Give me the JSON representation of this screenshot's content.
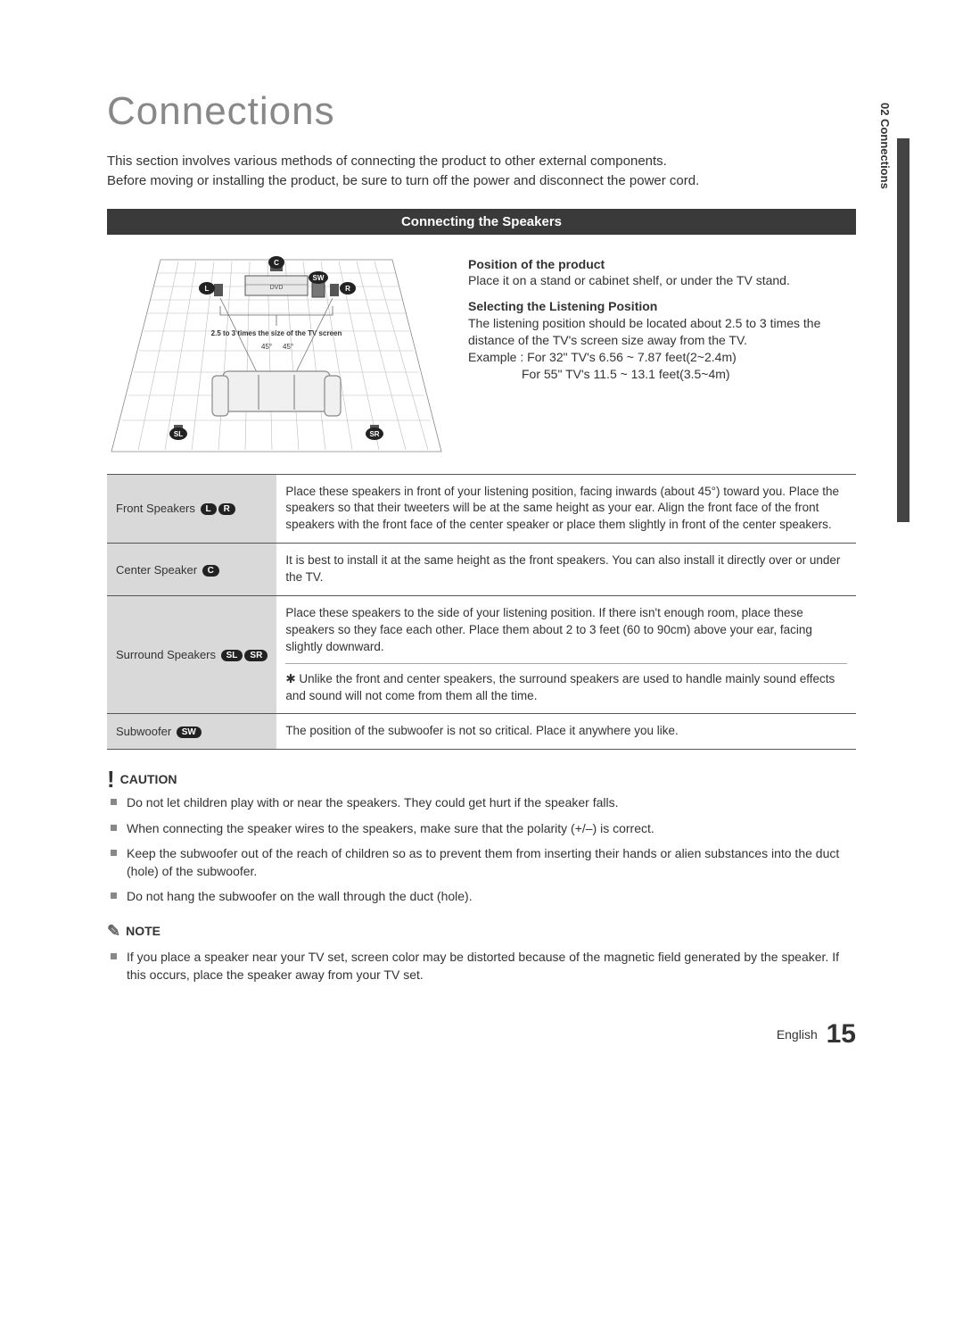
{
  "side_tab": "02  Connections",
  "title": "Connections",
  "intro_line1": "This section involves various methods of connecting the product to other external components.",
  "intro_line2": "Before moving or installing the product, be sure to turn off the power and disconnect the power cord.",
  "section_bar": "Connecting the Speakers",
  "diagram": {
    "label_dvd": "DVD",
    "label_distance": "2.5 to 3 times the size of the TV screen",
    "label_45l": "45°",
    "label_45r": "45°",
    "badges": {
      "C": "C",
      "L": "L",
      "R": "R",
      "SW": "SW",
      "SL": "SL",
      "SR": "SR"
    },
    "colors": {
      "floor_stroke": "#bcbcbc",
      "tv_fill": "#e8e8e8",
      "speaker_fill": "#555555",
      "badge_bg": "#222222",
      "line": "#666666",
      "outline": "#888888"
    }
  },
  "right_col": {
    "h_position": "Position of the product",
    "p_position": "Place it on a stand or cabinet shelf, or under the TV stand.",
    "h_listen": "Selecting the Listening Position",
    "p_listen": "The listening position should be located about 2.5 to 3 times the distance of the TV's screen size away from the TV.",
    "ex_label": "Example :",
    "ex_line1": "For 32\" TV's 6.56 ~ 7.87 feet(2~2.4m)",
    "ex_line2": "For 55\" TV's 11.5 ~ 13.1 feet(3.5~4m)"
  },
  "table": {
    "rows": [
      {
        "label": "Front Speakers",
        "badges": [
          "L",
          "R"
        ],
        "desc": "Place these speakers in front of your listening position, facing inwards (about 45°) toward you. Place the speakers so that their tweeters will be at the same height as your ear. Align the front face of the front speakers with the front face of the center speaker or place them slightly in front of the center speakers."
      },
      {
        "label": "Center Speaker",
        "badges": [
          "C"
        ],
        "desc": "It is best to install it at the same height as the front speakers. You can also install it directly over or under the TV."
      },
      {
        "label": "Surround Speakers",
        "badges": [
          "SL",
          "SR"
        ],
        "desc": "Place these speakers to the side of your listening position. If there isn't enough room, place these speakers so they face each other. Place them about 2 to 3 feet (60 to 90cm) above your ear, facing slightly downward.",
        "desc2": "Unlike the front and center speakers, the surround speakers are used to handle mainly sound effects and sound will not come from them all the time."
      },
      {
        "label": "Subwoofer",
        "badges": [
          "SW"
        ],
        "desc": "The position of the subwoofer is not so critical. Place it anywhere you like."
      }
    ]
  },
  "caution_label": "CAUTION",
  "caution_items": [
    "Do not let children play with or near the speakers. They could get hurt if the speaker falls.",
    "When connecting the speaker wires to the speakers, make sure that the polarity (+/–) is correct.",
    "Keep the subwoofer out of the reach of children so as to prevent them from inserting their hands or alien substances into the duct (hole) of the subwoofer.",
    "Do not hang the subwoofer on the wall through the duct (hole)."
  ],
  "note_label": "NOTE",
  "note_items": [
    "If you place a speaker near your TV set, screen color may be distorted because of the magnetic field generated by the speaker. If this occurs, place the speaker away from your TV set."
  ],
  "footer_lang": "English",
  "footer_page": "15"
}
